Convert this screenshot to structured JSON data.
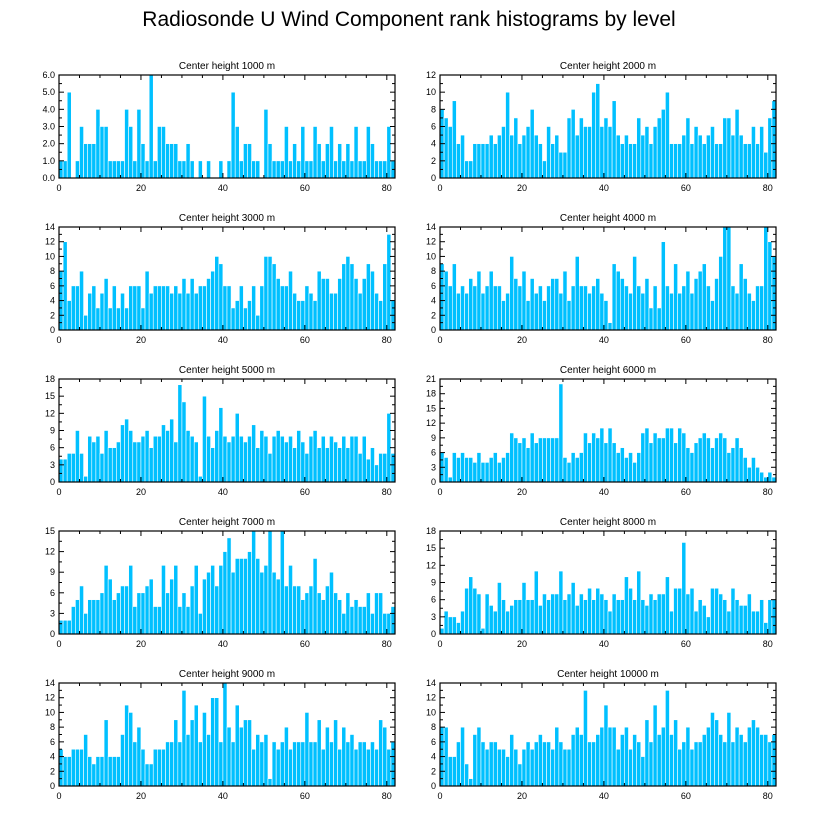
{
  "title": "Radiosonde U Wind Component rank histograms by level",
  "colors": {
    "bar": "#00c0ff",
    "bar_edge": "#ffffff",
    "frame": "#000000"
  },
  "chart_data": [
    {
      "type": "bar",
      "title": "Center height 1000 m",
      "xlim": [
        0,
        82
      ],
      "ylim": [
        0,
        6
      ],
      "xticks": [
        0,
        20,
        40,
        60,
        80
      ],
      "yticks": [
        0.0,
        1.0,
        2.0,
        3.0,
        4.0,
        5.0,
        6.0
      ],
      "ytick_labels": [
        "0.0",
        "1.0",
        "2.0",
        "3.0",
        "4.0",
        "5.0",
        "6.0"
      ],
      "values": [
        1,
        1,
        5,
        0,
        1,
        3,
        2,
        2,
        2,
        4,
        3,
        3,
        1,
        1,
        1,
        1,
        4,
        3,
        1,
        4,
        2,
        1,
        6,
        1,
        3,
        3,
        2,
        2,
        2,
        1,
        1,
        2,
        1,
        0,
        1,
        0,
        1,
        0,
        0,
        1,
        0,
        1,
        5,
        3,
        1,
        2,
        2,
        1,
        1,
        0,
        4,
        2,
        1,
        1,
        1,
        3,
        1,
        2,
        1,
        3,
        1,
        1,
        3,
        2,
        1,
        2,
        3,
        1,
        2,
        1,
        2,
        1,
        3,
        1,
        1,
        3,
        2,
        1,
        1,
        1,
        3,
        1
      ]
    },
    {
      "type": "bar",
      "title": "Center height 2000 m",
      "xlim": [
        0,
        82
      ],
      "ylim": [
        0,
        12
      ],
      "xticks": [
        0,
        20,
        40,
        60,
        80
      ],
      "yticks": [
        0,
        2,
        4,
        6,
        8,
        10,
        12
      ],
      "ytick_labels": [
        "0",
        "2",
        "4",
        "6",
        "8",
        "10",
        "12"
      ],
      "values": [
        8,
        7,
        6,
        9,
        4,
        5,
        2,
        2,
        4,
        4,
        4,
        4,
        5,
        4,
        5,
        6,
        10,
        5,
        7,
        4,
        5,
        6,
        8,
        5,
        4,
        2,
        6,
        4,
        5,
        3,
        3,
        7,
        8,
        5,
        7,
        6,
        6,
        10,
        11,
        6,
        7,
        6,
        9,
        5,
        4,
        5,
        4,
        4,
        7,
        5,
        6,
        4,
        6,
        7,
        8,
        10,
        4,
        4,
        4,
        5,
        7,
        4,
        6,
        5,
        4,
        5,
        6,
        4,
        4,
        7,
        7,
        5,
        8,
        5,
        4,
        4,
        6,
        4,
        6,
        3,
        7,
        9
      ]
    },
    {
      "type": "bar",
      "title": "Center height 3000 m",
      "xlim": [
        0,
        82
      ],
      "ylim": [
        0,
        14
      ],
      "xticks": [
        0,
        20,
        40,
        60,
        80
      ],
      "yticks": [
        0,
        2,
        4,
        6,
        8,
        10,
        12,
        14
      ],
      "ytick_labels": [
        "0",
        "2",
        "4",
        "6",
        "8",
        "10",
        "12",
        "14"
      ],
      "values": [
        8,
        12,
        4,
        6,
        6,
        8,
        2,
        5,
        6,
        3,
        5,
        7,
        3,
        6,
        3,
        5,
        3,
        6,
        6,
        6,
        3,
        8,
        5,
        6,
        6,
        6,
        6,
        5,
        6,
        5,
        7,
        5,
        7,
        5,
        6,
        6,
        7,
        8,
        10,
        9,
        6,
        6,
        3,
        4,
        6,
        3,
        4,
        6,
        2,
        6,
        10,
        10,
        9,
        7,
        6,
        6,
        8,
        5,
        4,
        4,
        6,
        5,
        4,
        8,
        7,
        7,
        5,
        5,
        7,
        9,
        10,
        9,
        7,
        5,
        7,
        9,
        8,
        5,
        4,
        9,
        13,
        4
      ]
    },
    {
      "type": "bar",
      "title": "Center height 4000 m",
      "xlim": [
        0,
        82
      ],
      "ylim": [
        0,
        14
      ],
      "xticks": [
        0,
        20,
        40,
        60,
        80
      ],
      "yticks": [
        0,
        2,
        4,
        6,
        8,
        10,
        12,
        14
      ],
      "ytick_labels": [
        "0",
        "2",
        "4",
        "6",
        "8",
        "10",
        "12",
        "14"
      ],
      "values": [
        9,
        8,
        6,
        9,
        5,
        6,
        5,
        7,
        6,
        8,
        5,
        6,
        8,
        6,
        6,
        4,
        5,
        10,
        7,
        6,
        8,
        4,
        7,
        5,
        6,
        4,
        6,
        7,
        7,
        5,
        8,
        4,
        6,
        10,
        6,
        6,
        5,
        6,
        7,
        5,
        4,
        1,
        9,
        8,
        7,
        6,
        5,
        10,
        6,
        5,
        7,
        3,
        6,
        3,
        12,
        6,
        5,
        9,
        5,
        6,
        8,
        5,
        7,
        8,
        9,
        6,
        4,
        7,
        10,
        14,
        14,
        6,
        5,
        9,
        7,
        5,
        4,
        6,
        6,
        14,
        12,
        10
      ]
    },
    {
      "type": "bar",
      "title": "Center height 5000 m",
      "xlim": [
        0,
        82
      ],
      "ylim": [
        0,
        18
      ],
      "xticks": [
        0,
        20,
        40,
        60,
        80
      ],
      "yticks": [
        0,
        3,
        6,
        9,
        12,
        15,
        18
      ],
      "ytick_labels": [
        "0",
        "3",
        "6",
        "9",
        "12",
        "15",
        "18"
      ],
      "values": [
        4,
        4,
        5,
        5,
        9,
        5,
        1,
        8,
        7,
        8,
        5,
        9,
        6,
        6,
        7,
        10,
        11,
        9,
        7,
        7,
        8,
        9,
        6,
        8,
        8,
        10,
        9,
        11,
        7,
        17,
        14,
        9,
        8,
        7,
        1,
        15,
        8,
        6,
        9,
        13,
        8,
        7,
        8,
        12,
        8,
        7,
        8,
        10,
        6,
        9,
        8,
        5,
        8,
        9,
        8,
        7,
        8,
        6,
        9,
        7,
        5,
        8,
        9,
        6,
        8,
        6,
        8,
        7,
        6,
        8,
        6,
        8,
        8,
        5,
        8,
        4,
        6,
        3,
        5,
        5,
        12,
        5
      ]
    },
    {
      "type": "bar",
      "title": "Center height 6000 m",
      "xlim": [
        0,
        82
      ],
      "ylim": [
        0,
        21
      ],
      "xticks": [
        0,
        20,
        40,
        60,
        80
      ],
      "yticks": [
        0,
        3,
        6,
        9,
        12,
        15,
        18,
        21
      ],
      "ytick_labels": [
        "0",
        "3",
        "6",
        "9",
        "12",
        "15",
        "18",
        "21"
      ],
      "values": [
        6,
        5,
        1,
        6,
        5,
        6,
        5,
        5,
        4,
        6,
        4,
        4,
        5,
        6,
        4,
        5,
        6,
        10,
        9,
        8,
        9,
        7,
        10,
        8,
        9,
        9,
        9,
        9,
        9,
        20,
        5,
        4,
        6,
        5,
        6,
        10,
        8,
        10,
        9,
        11,
        8,
        11,
        8,
        6,
        7,
        5,
        6,
        4,
        6,
        10,
        11,
        8,
        10,
        9,
        9,
        11,
        11,
        8,
        11,
        10,
        7,
        6,
        8,
        9,
        10,
        9,
        7,
        9,
        10,
        9,
        6,
        7,
        9,
        7,
        5,
        3,
        5,
        3,
        2,
        1,
        2,
        1
      ]
    },
    {
      "type": "bar",
      "title": "Center height 7000 m",
      "xlim": [
        0,
        82
      ],
      "ylim": [
        0,
        15
      ],
      "xticks": [
        0,
        20,
        40,
        60,
        80
      ],
      "yticks": [
        0,
        3,
        6,
        9,
        12,
        15
      ],
      "ytick_labels": [
        "0",
        "3",
        "6",
        "9",
        "12",
        "15"
      ],
      "values": [
        2,
        2,
        2,
        4,
        5,
        7,
        3,
        5,
        5,
        5,
        6,
        10,
        8,
        5,
        6,
        7,
        7,
        10,
        4,
        6,
        6,
        7,
        8,
        4,
        4,
        10,
        6,
        8,
        10,
        4,
        6,
        4,
        7,
        10,
        3,
        8,
        9,
        10,
        7,
        10,
        12,
        14,
        9,
        11,
        11,
        11,
        12,
        15,
        11,
        9,
        10,
        15,
        9,
        8,
        15,
        7,
        10,
        7,
        7,
        5,
        6,
        7,
        11,
        6,
        5,
        7,
        9,
        6,
        5,
        3,
        6,
        4,
        5,
        4,
        4,
        6,
        3,
        6,
        6,
        3,
        3,
        4
      ]
    },
    {
      "type": "bar",
      "title": "Center height 8000 m",
      "xlim": [
        0,
        82
      ],
      "ylim": [
        0,
        18
      ],
      "xticks": [
        0,
        20,
        40,
        60,
        80
      ],
      "yticks": [
        0,
        3,
        6,
        9,
        12,
        15,
        18
      ],
      "ytick_labels": [
        "0",
        "3",
        "6",
        "9",
        "12",
        "15",
        "18"
      ],
      "values": [
        1,
        4,
        3,
        3,
        2,
        4,
        8,
        10,
        8,
        7,
        1,
        7,
        5,
        4,
        9,
        6,
        4,
        5,
        6,
        6,
        9,
        6,
        6,
        11,
        5,
        7,
        6,
        7,
        7,
        11,
        6,
        7,
        9,
        5,
        7,
        6,
        8,
        6,
        8,
        7,
        6,
        4,
        7,
        6,
        6,
        10,
        8,
        6,
        11,
        6,
        5,
        7,
        6,
        7,
        7,
        10,
        4,
        8,
        8,
        16,
        7,
        8,
        4,
        6,
        5,
        3,
        8,
        8,
        7,
        6,
        4,
        8,
        6,
        5,
        5,
        7,
        4,
        4,
        6,
        2,
        6,
        6
      ]
    },
    {
      "type": "bar",
      "title": "Center height 9000 m",
      "xlim": [
        0,
        82
      ],
      "ylim": [
        0,
        14
      ],
      "xticks": [
        0,
        20,
        40,
        60,
        80
      ],
      "yticks": [
        0,
        2,
        4,
        6,
        8,
        10,
        12,
        14
      ],
      "ytick_labels": [
        "0",
        "2",
        "4",
        "6",
        "8",
        "10",
        "12",
        "14"
      ],
      "values": [
        5,
        4,
        4,
        5,
        5,
        5,
        7,
        4,
        3,
        4,
        4,
        9,
        4,
        4,
        4,
        7,
        11,
        10,
        6,
        8,
        5,
        3,
        3,
        5,
        5,
        5,
        6,
        6,
        9,
        6,
        13,
        7,
        9,
        11,
        6,
        10,
        7,
        12,
        12,
        6,
        14,
        8,
        6,
        11,
        8,
        9,
        9,
        5,
        7,
        6,
        7,
        1,
        6,
        5,
        6,
        8,
        5,
        6,
        6,
        6,
        10,
        6,
        6,
        9,
        5,
        8,
        6,
        9,
        5,
        8,
        6,
        7,
        5,
        6,
        6,
        5,
        6,
        5,
        9,
        8,
        5,
        6
      ]
    },
    {
      "type": "bar",
      "title": "Center height 10000 m",
      "xlim": [
        0,
        82
      ],
      "ylim": [
        0,
        14
      ],
      "xticks": [
        0,
        20,
        40,
        60,
        80
      ],
      "yticks": [
        0,
        2,
        4,
        6,
        8,
        10,
        12,
        14
      ],
      "ytick_labels": [
        "0",
        "2",
        "4",
        "6",
        "8",
        "10",
        "12",
        "14"
      ],
      "values": [
        8,
        8,
        4,
        4,
        6,
        8,
        3,
        1,
        7,
        8,
        6,
        5,
        6,
        6,
        5,
        5,
        4,
        7,
        5,
        3,
        5,
        6,
        5,
        6,
        7,
        6,
        6,
        5,
        8,
        6,
        5,
        5,
        7,
        8,
        7,
        13,
        6,
        6,
        7,
        8,
        11,
        8,
        8,
        5,
        7,
        8,
        5,
        7,
        6,
        4,
        9,
        6,
        11,
        7,
        8,
        13,
        7,
        9,
        5,
        6,
        8,
        5,
        6,
        6,
        7,
        8,
        10,
        9,
        7,
        6,
        10,
        6,
        8,
        7,
        6,
        8,
        9,
        8,
        7,
        7,
        6,
        7
      ]
    }
  ]
}
